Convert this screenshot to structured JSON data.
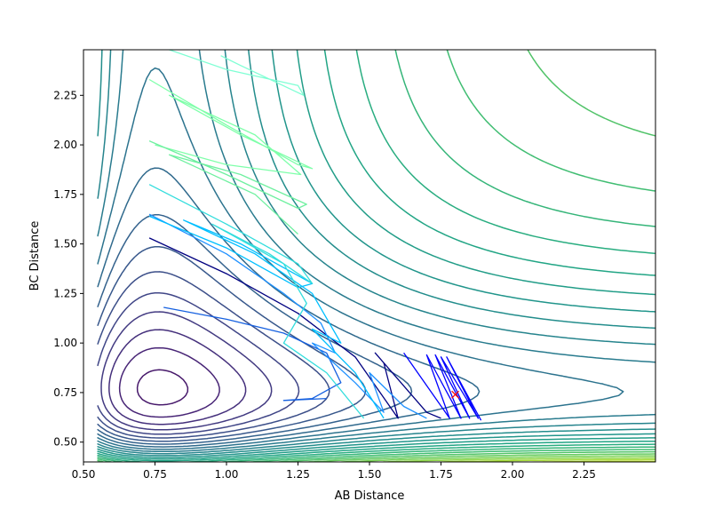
{
  "chart_data": {
    "type": "contour",
    "title": "",
    "xlabel": "AB Distance",
    "ylabel": "BC Distance",
    "xlim": [
      0.5,
      2.5
    ],
    "ylim": [
      0.4,
      2.48
    ],
    "x_ticks": [
      0.5,
      0.75,
      1.0,
      1.25,
      1.5,
      1.75,
      2.0,
      2.25
    ],
    "x_tick_labels": [
      "0.50",
      "0.75",
      "1.00",
      "1.25",
      "1.50",
      "1.75",
      "2.00",
      "2.25"
    ],
    "y_ticks": [
      0.5,
      0.75,
      1.0,
      1.25,
      1.5,
      1.75,
      2.0,
      2.25
    ],
    "y_tick_labels": [
      "0.50",
      "0.75",
      "1.00",
      "1.25",
      "1.50",
      "1.75",
      "2.00",
      "2.25"
    ],
    "grid": false,
    "colormap": "viridis",
    "contour_levels": 30,
    "marker": {
      "x": 1.8,
      "y": 0.74,
      "symbol": "x",
      "color": "#ff0000"
    },
    "trajectory_colors": [
      "#000080",
      "#0000ff",
      "#0a55e0",
      "#1e90ff",
      "#00bfff",
      "#00ffff",
      "#7fffd4"
    ],
    "trajectories": [
      {
        "color": "#000080",
        "points": [
          [
            0.73,
            1.53
          ],
          [
            1.0,
            1.35
          ],
          [
            1.25,
            1.15
          ],
          [
            1.45,
            0.93
          ],
          [
            1.6,
            0.62
          ],
          [
            1.55,
            0.9
          ],
          [
            1.52,
            0.95
          ],
          [
            1.7,
            0.65
          ],
          [
            1.75,
            0.62
          ]
        ]
      },
      {
        "color": "#0000ff",
        "points": [
          [
            1.62,
            0.95
          ],
          [
            1.78,
            0.62
          ],
          [
            1.7,
            0.94
          ],
          [
            1.82,
            0.62
          ],
          [
            1.73,
            0.94
          ],
          [
            1.85,
            0.62
          ],
          [
            1.75,
            0.93
          ],
          [
            1.88,
            0.62
          ],
          [
            1.77,
            0.93
          ],
          [
            1.89,
            0.61
          ]
        ]
      },
      {
        "color": "#1560e0",
        "points": [
          [
            0.78,
            1.18
          ],
          [
            1.0,
            1.12
          ],
          [
            1.2,
            1.05
          ],
          [
            1.35,
            0.95
          ],
          [
            1.4,
            0.8
          ],
          [
            1.3,
            0.72
          ],
          [
            1.2,
            0.71
          ],
          [
            1.35,
            0.72
          ]
        ]
      },
      {
        "color": "#1e90ff",
        "points": [
          [
            0.73,
            1.65
          ],
          [
            1.0,
            1.45
          ],
          [
            1.2,
            1.25
          ],
          [
            1.33,
            1.1
          ],
          [
            1.38,
            0.95
          ],
          [
            1.3,
            1.0
          ],
          [
            1.45,
            0.8
          ],
          [
            1.55,
            0.65
          ],
          [
            1.5,
            0.85
          ],
          [
            1.62,
            0.68
          ],
          [
            1.7,
            0.62
          ]
        ]
      },
      {
        "color": "#00bfff",
        "points": [
          [
            0.73,
            1.64
          ],
          [
            1.0,
            1.48
          ],
          [
            1.25,
            1.28
          ],
          [
            1.3,
            1.3
          ],
          [
            1.05,
            1.5
          ],
          [
            0.85,
            1.62
          ],
          [
            1.1,
            1.45
          ],
          [
            1.3,
            1.25
          ],
          [
            1.4,
            1.0
          ],
          [
            1.3,
            1.07
          ],
          [
            1.45,
            0.85
          ],
          [
            1.55,
            0.62
          ]
        ]
      },
      {
        "color": "#33dddd",
        "points": [
          [
            0.73,
            1.8
          ],
          [
            1.0,
            1.6
          ],
          [
            1.25,
            1.4
          ],
          [
            1.3,
            1.3
          ],
          [
            1.15,
            1.45
          ],
          [
            0.95,
            1.6
          ],
          [
            1.2,
            1.4
          ],
          [
            1.28,
            1.2
          ],
          [
            1.2,
            1.0
          ],
          [
            1.35,
            0.85
          ],
          [
            1.48,
            0.62
          ]
        ]
      },
      {
        "color": "#7fffaa",
        "points": [
          [
            0.73,
            2.33
          ],
          [
            1.0,
            2.1
          ],
          [
            1.25,
            1.9
          ],
          [
            1.3,
            1.88
          ],
          [
            1.05,
            2.05
          ],
          [
            0.8,
            2.25
          ],
          [
            1.1,
            2.05
          ],
          [
            1.26,
            1.85
          ],
          [
            1.0,
            1.9
          ],
          [
            0.75,
            2.0
          ]
        ]
      },
      {
        "color": "#6ff0a0",
        "points": [
          [
            0.73,
            2.02
          ],
          [
            1.0,
            1.85
          ],
          [
            1.25,
            1.68
          ],
          [
            1.28,
            1.7
          ],
          [
            1.05,
            1.85
          ],
          [
            0.8,
            1.95
          ],
          [
            1.1,
            1.75
          ],
          [
            1.25,
            1.55
          ]
        ]
      },
      {
        "color": "#7fffd4",
        "points": [
          [
            0.8,
            2.48
          ],
          [
            1.0,
            2.38
          ],
          [
            1.25,
            2.3
          ],
          [
            1.27,
            2.25
          ],
          [
            1.05,
            2.4
          ],
          [
            0.98,
            2.45
          ]
        ]
      }
    ]
  },
  "axes": {
    "xlabel": "AB Distance",
    "ylabel": "BC Distance"
  }
}
